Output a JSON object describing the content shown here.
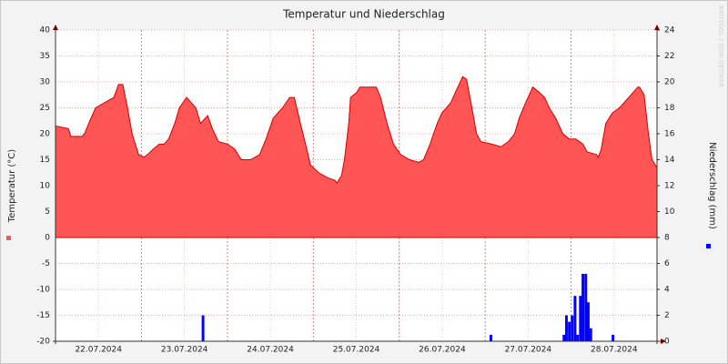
{
  "chart_data": {
    "type": "area",
    "title": "Temperatur und Niederschlag",
    "ylabel": "Temperatur (°C)",
    "y2label": "Niederschlag (mm)",
    "watermark": "RRDTOOL / TOBI OETIKER",
    "xlim": [
      0,
      168
    ],
    "xticks": [
      {
        "value": 12,
        "label": "22.07.2024"
      },
      {
        "value": 36,
        "label": "23.07.2024"
      },
      {
        "value": 60,
        "label": "24.07.2024"
      },
      {
        "value": 84,
        "label": "25.07.2024"
      },
      {
        "value": 108,
        "label": "26.07.2024"
      },
      {
        "value": 132,
        "label": "27.07.2024"
      },
      {
        "value": 156,
        "label": "28.07.2024"
      }
    ],
    "xgrid_major": [
      24,
      48,
      72,
      96,
      120,
      144
    ],
    "ylim": [
      -20,
      40
    ],
    "yticks": [
      -20,
      -15,
      -10,
      -5,
      0,
      5,
      10,
      15,
      20,
      25,
      30,
      35,
      40
    ],
    "y2lim": [
      0,
      24
    ],
    "y2ticks": [
      0,
      2,
      4,
      6,
      8,
      10,
      12,
      14,
      16,
      18,
      20,
      22,
      24
    ],
    "grid": true,
    "series": [
      {
        "type": "area",
        "color": "#ff5555",
        "line_color": "#d40000",
        "x": [
          0,
          3.6,
          4.3,
          7.4,
          8.1,
          9.9,
          11.2,
          13.7,
          16.3,
          17.6,
          18.8,
          20.1,
          21.4,
          23.2,
          24.7,
          25.7,
          27.2,
          29.0,
          30.3,
          31.6,
          33.3,
          34.6,
          36.6,
          37.9,
          39.2,
          40.5,
          42.5,
          43.8,
          45.5,
          48.1,
          50.1,
          51.9,
          54.5,
          57.0,
          58.8,
          60.8,
          63.4,
          65.4,
          66.7,
          68.4,
          70.2,
          71.2,
          73.5,
          76.1,
          78.1,
          78.6,
          79.9,
          80.7,
          81.9,
          82.4,
          84.2,
          85.0,
          87.5,
          89.6,
          90.8,
          92.6,
          94.4,
          96.4,
          98.9,
          101.5,
          102.8,
          104.6,
          106.6,
          107.9,
          110.4,
          111.7,
          113.7,
          114.8,
          116.3,
          117.6,
          118.8,
          121.9,
          124.4,
          126.5,
          128.2,
          129.5,
          131.3,
          133.3,
          135.1,
          136.6,
          137.9,
          139.7,
          141.7,
          143.5,
          145.3,
          147.3,
          148.5,
          151.1,
          151.6,
          152.4,
          153.7,
          155.5,
          157.5,
          160.1,
          162.6,
          163.1,
          164.4,
          165.6,
          166.6,
          168
        ],
        "values": [
          21.5,
          21,
          19.5,
          19.5,
          20,
          23,
          25,
          26,
          27,
          29.5,
          29.5,
          25,
          20,
          16,
          15.5,
          16,
          17,
          18,
          18,
          19,
          22,
          25,
          27,
          26,
          25,
          22,
          23.5,
          21,
          18.5,
          18,
          17,
          15,
          15,
          16,
          19,
          23,
          25,
          27,
          27,
          22,
          17,
          14,
          12.5,
          11.5,
          11,
          10.5,
          12,
          15,
          22,
          27,
          28,
          29,
          29,
          29,
          27,
          22,
          18,
          16,
          15,
          14.5,
          15,
          18,
          22,
          24,
          26,
          28,
          31,
          30.5,
          25,
          20,
          18.5,
          18,
          17.5,
          18.5,
          20,
          23,
          26,
          29,
          28,
          27,
          25,
          23,
          20,
          19,
          19,
          18,
          16.5,
          16,
          15.5,
          17,
          22,
          24,
          25,
          27,
          29,
          29,
          27.5,
          20,
          15,
          13.5
        ]
      },
      {
        "type": "bar",
        "axis": "y2",
        "color": "#0000ff",
        "x": [
          41.2,
          121.6,
          142.0,
          142.7,
          143.5,
          144.3,
          145.1,
          145.8,
          146.6,
          147.3,
          148.1,
          148.8,
          149.5,
          155.7
        ],
        "values": [
          2,
          0.5,
          0.5,
          2,
          1.5,
          2,
          3.5,
          0.5,
          3.5,
          5.2,
          5.2,
          3,
          1,
          0.5
        ]
      }
    ]
  }
}
